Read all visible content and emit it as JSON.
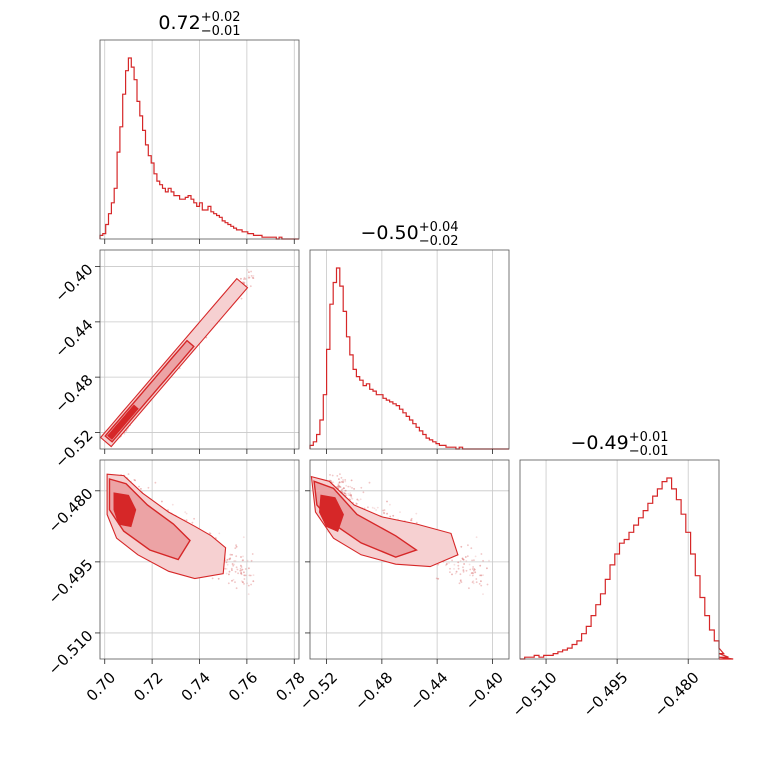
{
  "chart_data": {
    "type": "corner",
    "color": "#d62728",
    "parameters": [
      {
        "title": {
          "median": "0.72",
          "plus": "+0.02",
          "minus": "−0.01"
        },
        "range": [
          0.698,
          0.782
        ],
        "ticks": [
          0.7,
          0.72,
          0.74,
          0.76,
          0.78
        ],
        "tick_labels": [
          "0.70",
          "0.72",
          "0.74",
          "0.76",
          "0.78"
        ]
      },
      {
        "title": {
          "median": "−0.50",
          "plus": "+0.04",
          "minus": "−0.02"
        },
        "range": [
          -0.532,
          -0.388
        ],
        "ticks": [
          -0.52,
          -0.48,
          -0.44,
          -0.4
        ],
        "tick_labels": [
          "−0.52",
          "−0.48",
          "−0.44",
          "−0.40"
        ]
      },
      {
        "title": {
          "median": "−0.49",
          "plus": "+0.01",
          "minus": "−0.01"
        },
        "range": [
          -0.5155,
          -0.4735
        ],
        "ticks": [
          -0.51,
          -0.495,
          -0.48
        ],
        "tick_labels": [
          "−0.510",
          "−0.495",
          "−0.480"
        ]
      }
    ],
    "histograms": [
      {
        "bin_start": 0.698,
        "bin_width": 0.0012,
        "counts": [
          2,
          3,
          8,
          14,
          20,
          28,
          48,
          62,
          80,
          93,
          100,
          95,
          88,
          76,
          68,
          60,
          52,
          46,
          42,
          36,
          32,
          30,
          28,
          26,
          28,
          26,
          24,
          24,
          22,
          22,
          23,
          24,
          22,
          20,
          18,
          20,
          16,
          16,
          18,
          15,
          14,
          13,
          12,
          10,
          9,
          8,
          7,
          6,
          5,
          5,
          4,
          4,
          3,
          3,
          2,
          2,
          2,
          1,
          1,
          1,
          1,
          1,
          0,
          1,
          0,
          0,
          0,
          0,
          0,
          0
        ]
      },
      {
        "bin_start": -0.532,
        "bin_width": 0.0024,
        "counts": [
          2,
          4,
          8,
          16,
          30,
          55,
          80,
          92,
          100,
          90,
          76,
          62,
          52,
          44,
          40,
          38,
          35,
          36,
          33,
          32,
          30,
          30,
          28,
          27,
          26,
          25,
          24,
          22,
          20,
          18,
          16,
          14,
          12,
          10,
          8,
          6,
          5,
          4,
          3,
          2,
          2,
          1,
          1,
          1,
          0,
          1,
          0,
          0,
          0,
          0
        ]
      },
      {
        "bin_start": -0.5155,
        "bin_width": 0.001,
        "counts": [
          0,
          1,
          1,
          2,
          1,
          2,
          2,
          3,
          4,
          5,
          6,
          8,
          10,
          14,
          18,
          24,
          30,
          36,
          44,
          52,
          58,
          64,
          66,
          70,
          74,
          78,
          82,
          86,
          90,
          94,
          98,
          100,
          94,
          88,
          80,
          70,
          58,
          46,
          34,
          24,
          16,
          10,
          6,
          3,
          1,
          0
        ]
      }
    ],
    "pairs": [
      {
        "x_param": 0,
        "y_param": 1,
        "relation": "strong positive correlation"
      },
      {
        "x_param": 0,
        "y_param": 2,
        "relation": "weak negative correlation"
      },
      {
        "x_param": 1,
        "y_param": 2,
        "relation": "negative correlation"
      }
    ]
  }
}
